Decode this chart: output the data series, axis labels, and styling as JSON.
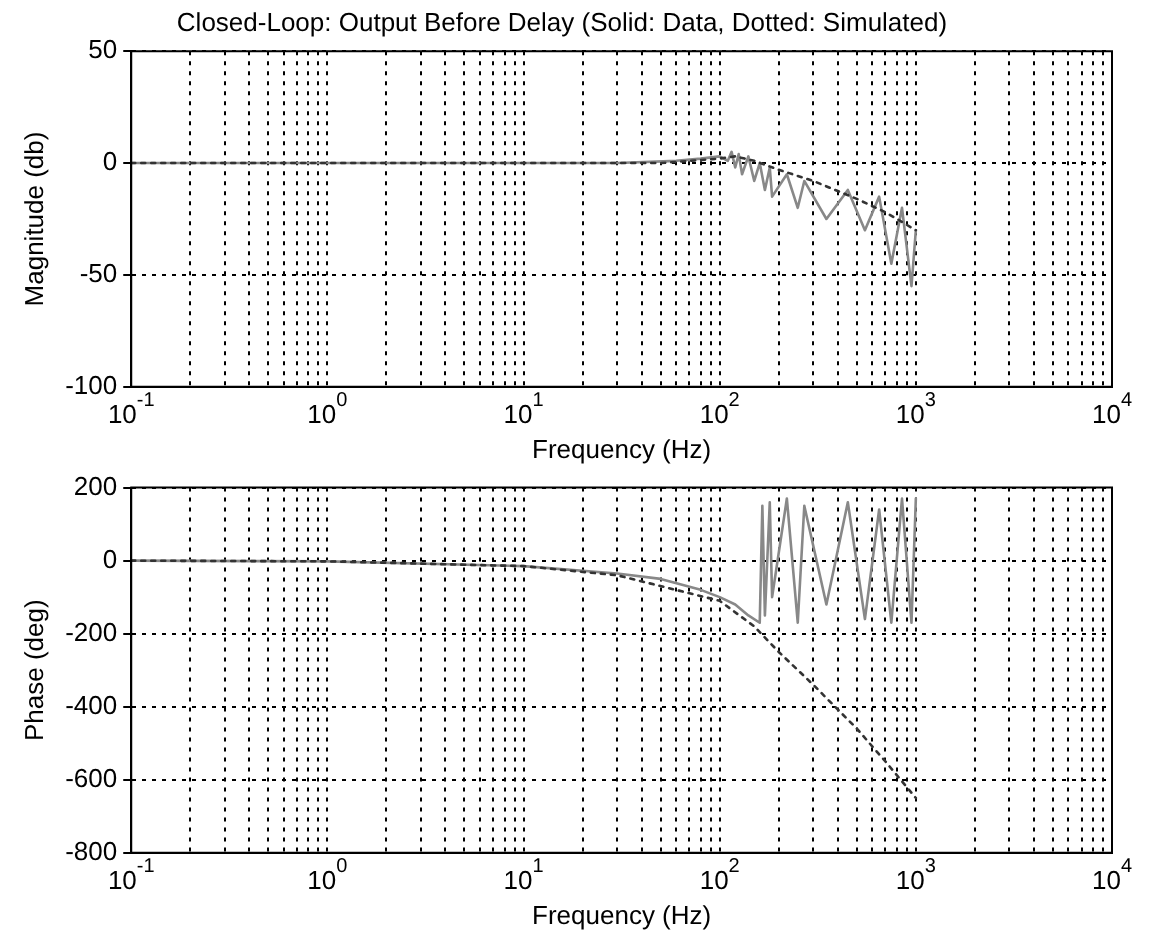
{
  "chart_data": [
    {
      "type": "line",
      "title": "Closed-Loop: Output Before Delay (Solid: Data, Dotted: Simulated)",
      "xlabel": "Frequency (Hz)",
      "ylabel": "Magnitude (db)",
      "log": "x",
      "grid": true,
      "xlim": [
        0.1,
        10000
      ],
      "ylim": [
        -100,
        50
      ],
      "yticks": [
        -100,
        -50,
        0,
        50
      ],
      "xticks": [
        {
          "value": 0.1,
          "label": "10$^{-1}$"
        },
        {
          "value": 0.2,
          "label": null
        },
        {
          "value": 0.3,
          "label": null
        },
        {
          "value": 0.4,
          "label": null
        },
        {
          "value": 0.5,
          "label": null
        },
        {
          "value": 0.6,
          "label": null
        },
        {
          "value": 0.7,
          "label": null
        },
        {
          "value": 0.8,
          "label": null
        },
        {
          "value": 0.9,
          "label": null
        },
        {
          "value": 1,
          "label": "10$^{0}$"
        },
        {
          "value": 2,
          "label": null
        },
        {
          "value": 3,
          "label": null
        },
        {
          "value": 4,
          "label": null
        },
        {
          "value": 5,
          "label": null
        },
        {
          "value": 6,
          "label": null
        },
        {
          "value": 7,
          "label": null
        },
        {
          "value": 8,
          "label": null
        },
        {
          "value": 9,
          "label": null
        },
        {
          "value": 10,
          "label": "10$^{1}$"
        },
        {
          "value": 20,
          "label": null
        },
        {
          "value": 30,
          "label": null
        },
        {
          "value": 40,
          "label": null
        },
        {
          "value": 50,
          "label": null
        },
        {
          "value": 60,
          "label": null
        },
        {
          "value": 70,
          "label": null
        },
        {
          "value": 80,
          "label": null
        },
        {
          "value": 90,
          "label": null
        },
        {
          "value": 100,
          "label": "10$^{2}$"
        },
        {
          "value": 200,
          "label": null
        },
        {
          "value": 300,
          "label": null
        },
        {
          "value": 400,
          "label": null
        },
        {
          "value": 500,
          "label": null
        },
        {
          "value": 600,
          "label": null
        },
        {
          "value": 700,
          "label": null
        },
        {
          "value": 800,
          "label": null
        },
        {
          "value": 900,
          "label": null
        },
        {
          "value": 1000,
          "label": "10$^{3}$"
        },
        {
          "value": 2000,
          "label": null
        },
        {
          "value": 3000,
          "label": null
        },
        {
          "value": 4000,
          "label": null
        },
        {
          "value": 5000,
          "label": null
        },
        {
          "value": 6000,
          "label": null
        },
        {
          "value": 7000,
          "label": null
        },
        {
          "value": 8000,
          "label": null
        },
        {
          "value": 9000,
          "label": null
        },
        {
          "value": 10000,
          "label": "10$^{4}$"
        }
      ],
      "series": [
        {
          "type": "line",
          "color": "#888888",
          "line_style": "solid",
          "x": [
            0.1,
            1,
            10,
            30,
            60,
            80,
            100,
            110,
            115,
            120,
            125,
            130,
            140,
            150,
            160,
            170,
            180,
            185,
            220,
            250,
            270,
            350,
            450,
            550,
            650,
            750,
            850,
            950,
            1000
          ],
          "values": [
            0,
            0,
            0,
            0,
            1,
            2,
            3,
            1,
            5,
            -2,
            4,
            -5,
            3,
            -8,
            0,
            -12,
            -2,
            -15,
            -5,
            -20,
            -8,
            -25,
            -12,
            -30,
            -15,
            -45,
            -20,
            -55,
            -30
          ]
        },
        {
          "type": "line",
          "color": "#333333",
          "line_style": "dotted",
          "x": [
            0.1,
            10,
            50,
            100,
            120,
            150,
            200,
            300,
            500,
            700,
            1000
          ],
          "values": [
            0,
            0,
            0,
            2,
            3,
            1,
            -3,
            -8,
            -16,
            -22,
            -30
          ]
        }
      ]
    },
    {
      "type": "line",
      "xlabel": "Frequency (Hz)",
      "ylabel": "Phase (deg)",
      "log": "x",
      "grid": true,
      "xlim": [
        0.1,
        10000
      ],
      "ylim": [
        -800,
        200
      ],
      "yticks": [
        -800,
        -600,
        -400,
        -200,
        0,
        200
      ],
      "xticks": [
        {
          "value": 0.1,
          "label": "10$^{-1}$"
        },
        {
          "value": 0.2,
          "label": null
        },
        {
          "value": 0.3,
          "label": null
        },
        {
          "value": 0.4,
          "label": null
        },
        {
          "value": 0.5,
          "label": null
        },
        {
          "value": 0.6,
          "label": null
        },
        {
          "value": 0.7,
          "label": null
        },
        {
          "value": 0.8,
          "label": null
        },
        {
          "value": 0.9,
          "label": null
        },
        {
          "value": 1,
          "label": "10$^{0}$"
        },
        {
          "value": 2,
          "label": null
        },
        {
          "value": 3,
          "label": null
        },
        {
          "value": 4,
          "label": null
        },
        {
          "value": 5,
          "label": null
        },
        {
          "value": 6,
          "label": null
        },
        {
          "value": 7,
          "label": null
        },
        {
          "value": 8,
          "label": null
        },
        {
          "value": 9,
          "label": null
        },
        {
          "value": 10,
          "label": "10$^{1}$"
        },
        {
          "value": 20,
          "label": null
        },
        {
          "value": 30,
          "label": null
        },
        {
          "value": 40,
          "label": null
        },
        {
          "value": 50,
          "label": null
        },
        {
          "value": 60,
          "label": null
        },
        {
          "value": 70,
          "label": null
        },
        {
          "value": 80,
          "label": null
        },
        {
          "value": 90,
          "label": null
        },
        {
          "value": 100,
          "label": "10$^{2}$"
        },
        {
          "value": 200,
          "label": null
        },
        {
          "value": 300,
          "label": null
        },
        {
          "value": 400,
          "label": null
        },
        {
          "value": 500,
          "label": null
        },
        {
          "value": 600,
          "label": null
        },
        {
          "value": 700,
          "label": null
        },
        {
          "value": 800,
          "label": null
        },
        {
          "value": 900,
          "label": null
        },
        {
          "value": 1000,
          "label": "10$^{3}$"
        },
        {
          "value": 2000,
          "label": null
        },
        {
          "value": 3000,
          "label": null
        },
        {
          "value": 4000,
          "label": null
        },
        {
          "value": 5000,
          "label": null
        },
        {
          "value": 6000,
          "label": null
        },
        {
          "value": 7000,
          "label": null
        },
        {
          "value": 8000,
          "label": null
        },
        {
          "value": 9000,
          "label": null
        },
        {
          "value": 10000,
          "label": "10$^{4}$"
        }
      ],
      "series": [
        {
          "type": "line",
          "color": "#888888",
          "line_style": "solid",
          "x": [
            0.1,
            1,
            10,
            30,
            50,
            80,
            100,
            120,
            140,
            160,
            165,
            170,
            180,
            185,
            220,
            250,
            270,
            350,
            450,
            550,
            650,
            750,
            850,
            950,
            1000
          ],
          "values": [
            0,
            -2,
            -15,
            -35,
            -50,
            -80,
            -100,
            -120,
            -150,
            -170,
            150,
            -150,
            160,
            -100,
            170,
            -170,
            150,
            -120,
            160,
            -160,
            140,
            -170,
            170,
            -170,
            170
          ]
        },
        {
          "type": "line",
          "color": "#333333",
          "line_style": "dotted",
          "x": [
            0.1,
            1,
            10,
            30,
            100,
            150,
            200,
            300,
            500,
            700,
            1000
          ],
          "values": [
            0,
            -2,
            -15,
            -40,
            -110,
            -180,
            -250,
            -340,
            -460,
            -550,
            -650
          ]
        }
      ]
    }
  ]
}
